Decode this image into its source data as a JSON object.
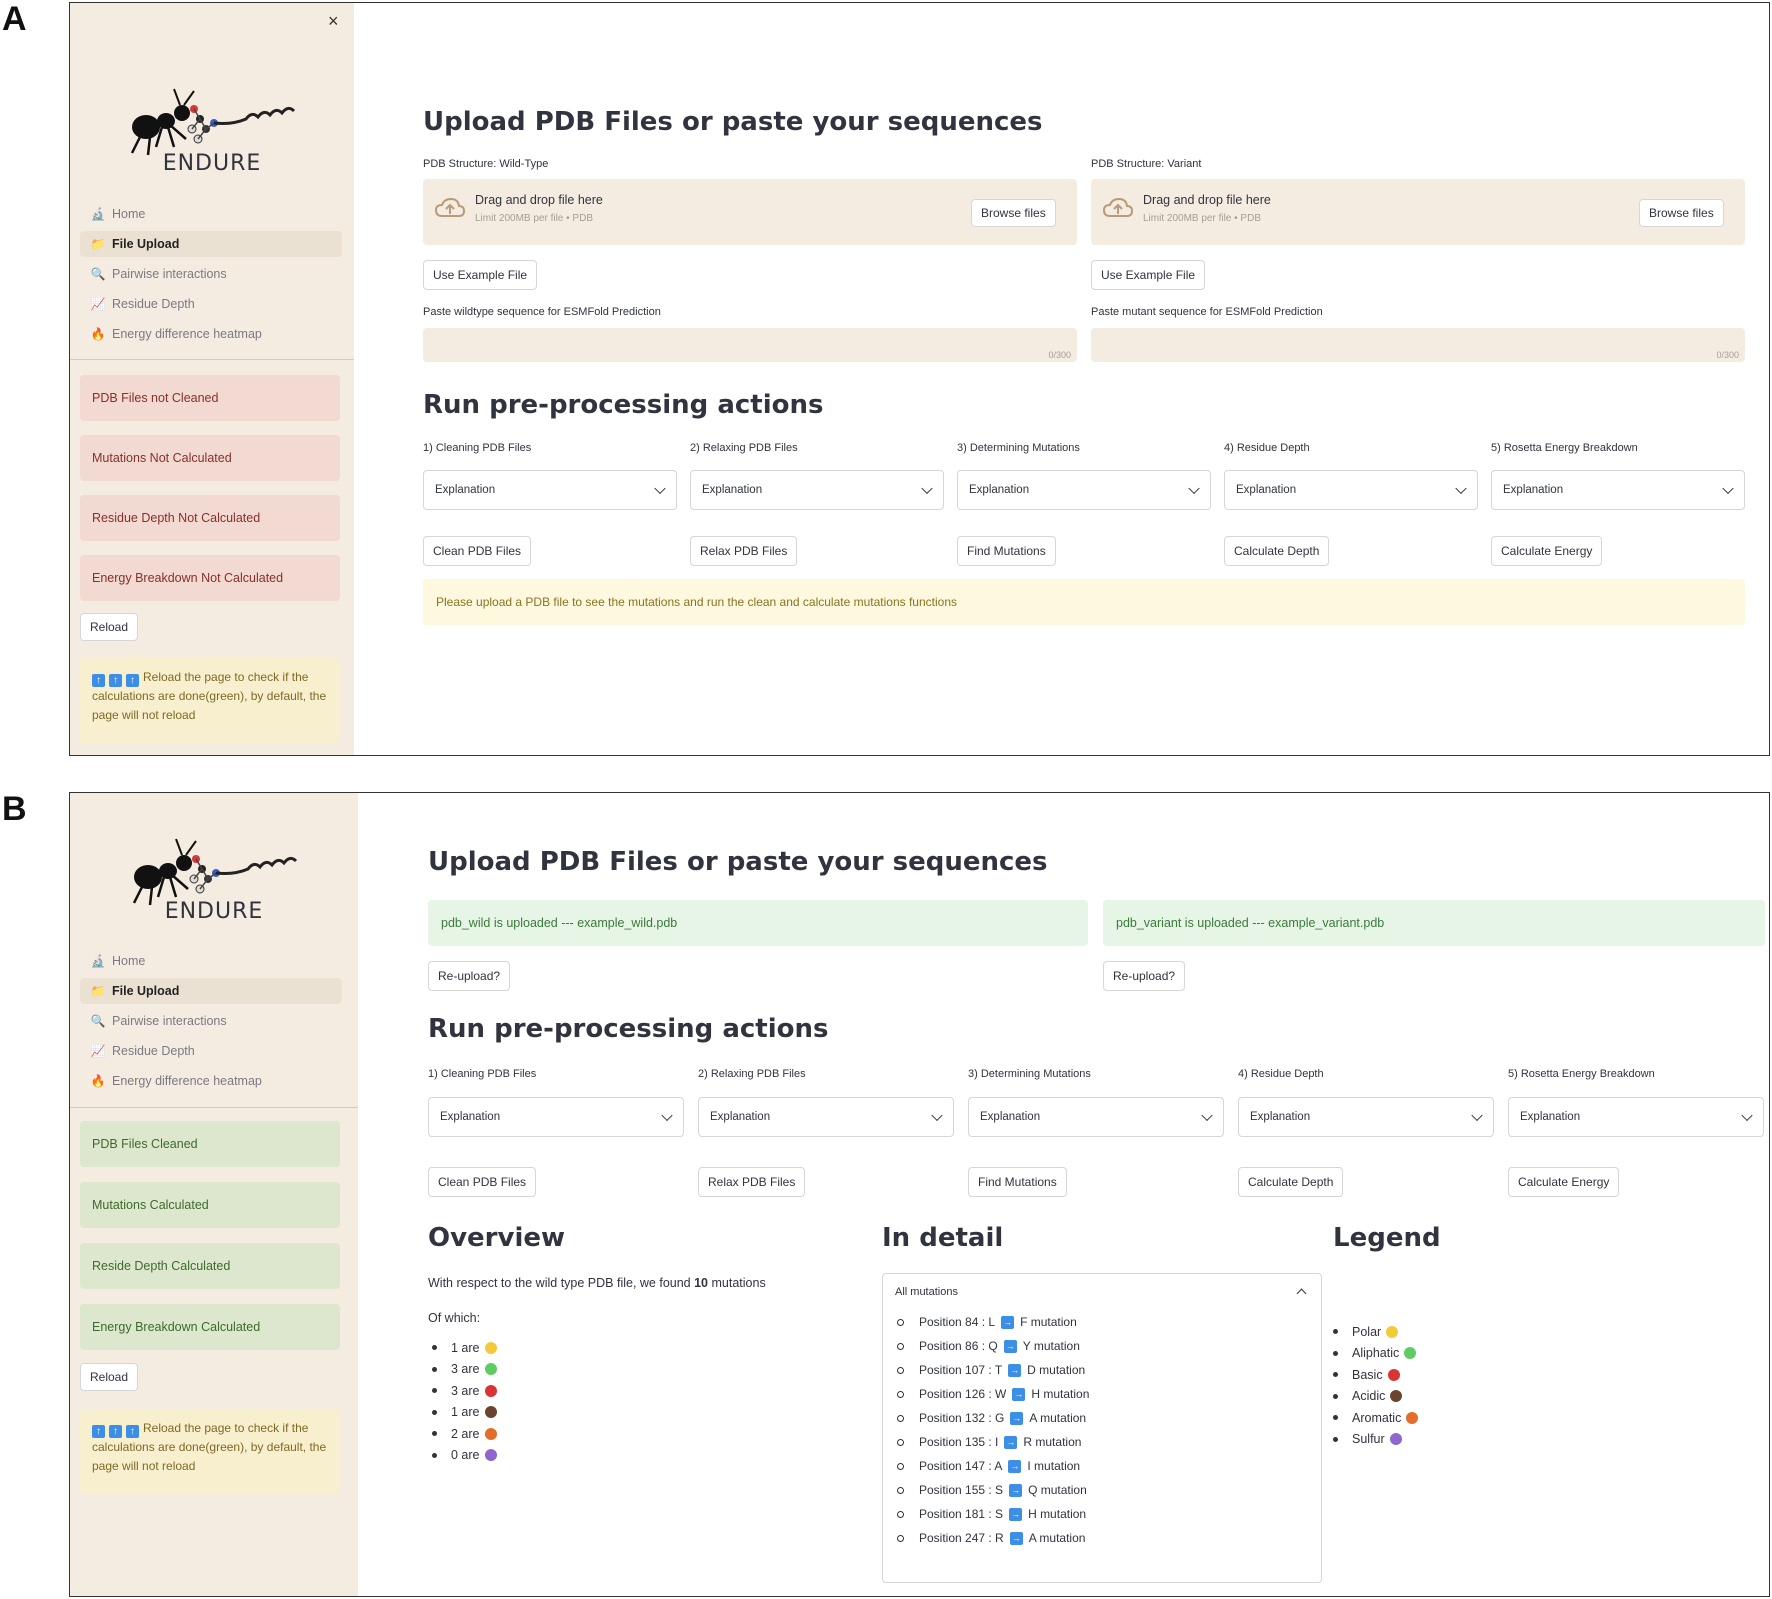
{
  "labels": {
    "a": "A",
    "b": "B"
  },
  "app": {
    "name": "ENDURE",
    "close": "×"
  },
  "nav": [
    {
      "label": "Home",
      "icon": "microscope-icon"
    },
    {
      "label": "File Upload",
      "icon": "folder-icon"
    },
    {
      "label": "Pairwise interactions",
      "icon": "magnifier-icon"
    },
    {
      "label": "Residue Depth",
      "icon": "chart-icon"
    },
    {
      "label": "Energy difference heatmap",
      "icon": "fire-icon"
    }
  ],
  "panelA": {
    "status": [
      "PDB Files not Cleaned",
      "Mutations Not Calculated",
      "Residue Depth Not Calculated",
      "Energy Breakdown Not Calculated"
    ],
    "reload": "Reload",
    "note": "Reload the page to check if the calculations are done(green), by default, the page will not reload",
    "title": "Upload PDB Files or paste your sequences",
    "wild_label": "PDB Structure: Wild-Type",
    "variant_label": "PDB Structure: Variant",
    "drop_title": "Drag and drop file here",
    "drop_sub": "Limit 200MB per file • PDB",
    "browse": "Browse files",
    "example": "Use Example File",
    "wild_seq_label": "Paste wildtype sequence for ESMFold Prediction",
    "mut_seq_label": "Paste mutant sequence for ESMFold Prediction",
    "counter": "0/300",
    "warning": "Please upload a PDB file to see the mutations and run the clean and calculate mutations functions"
  },
  "preprocess": {
    "title": "Run pre-processing actions",
    "steps": [
      {
        "label": "1) Cleaning PDB Files",
        "select": "Explanation",
        "button": "Clean PDB Files"
      },
      {
        "label": "2) Relaxing PDB Files",
        "select": "Explanation",
        "button": "Relax PDB Files"
      },
      {
        "label": "3) Determining Mutations",
        "select": "Explanation",
        "button": "Find Mutations"
      },
      {
        "label": "4) Residue Depth",
        "select": "Explanation",
        "button": "Calculate Depth"
      },
      {
        "label": "5) Rosetta Energy Breakdown",
        "select": "Explanation",
        "button": "Calculate Energy"
      }
    ]
  },
  "panelB": {
    "status": [
      "PDB Files Cleaned",
      "Mutations Calculated",
      "Reside Depth Calculated",
      "Energy Breakdown Calculated"
    ],
    "wild_uploaded": "pdb_wild is uploaded --- example_wild.pdb",
    "variant_uploaded": "pdb_variant is uploaded --- example_variant.pdb",
    "reupload": "Re-upload?",
    "overview": {
      "title": "Overview",
      "sentence_pre": "With respect to the wild type PDB file, we found",
      "count": "10",
      "sentence_post": "mutations",
      "of_which": "Of which:",
      "rows": [
        {
          "text": "1 are",
          "color": "#f2cb3a"
        },
        {
          "text": "3 are",
          "color": "#5dcc63"
        },
        {
          "text": "3 are",
          "color": "#d93434"
        },
        {
          "text": "1 are",
          "color": "#6b4430"
        },
        {
          "text": "2 are",
          "color": "#e56d2a"
        },
        {
          "text": "0 are",
          "color": "#8e66cc"
        }
      ]
    },
    "detail": {
      "title": "In detail",
      "expander": "All mutations",
      "mutations": [
        {
          "pos": "Position 84 : L",
          "to": "F mutation"
        },
        {
          "pos": "Position 86 : Q",
          "to": "Y mutation"
        },
        {
          "pos": "Position 107 : T",
          "to": "D mutation"
        },
        {
          "pos": "Position 126 : W",
          "to": "H mutation"
        },
        {
          "pos": "Position 132 : G",
          "to": "A mutation"
        },
        {
          "pos": "Position 135 : I",
          "to": "R mutation"
        },
        {
          "pos": "Position 147 : A",
          "to": "I mutation"
        },
        {
          "pos": "Position 155 : S",
          "to": "Q mutation"
        },
        {
          "pos": "Position 181 : S",
          "to": "H mutation"
        },
        {
          "pos": "Position 247 : R",
          "to": "A mutation"
        }
      ]
    },
    "legend": {
      "title": "Legend",
      "items": [
        {
          "text": "Polar",
          "color": "#f2cb3a"
        },
        {
          "text": "Aliphatic",
          "color": "#5dcc63"
        },
        {
          "text": "Basic",
          "color": "#d93434"
        },
        {
          "text": "Acidic",
          "color": "#6b4430"
        },
        {
          "text": "Aromatic",
          "color": "#e56d2a"
        },
        {
          "text": "Sulfur",
          "color": "#8e66cc"
        }
      ]
    }
  }
}
